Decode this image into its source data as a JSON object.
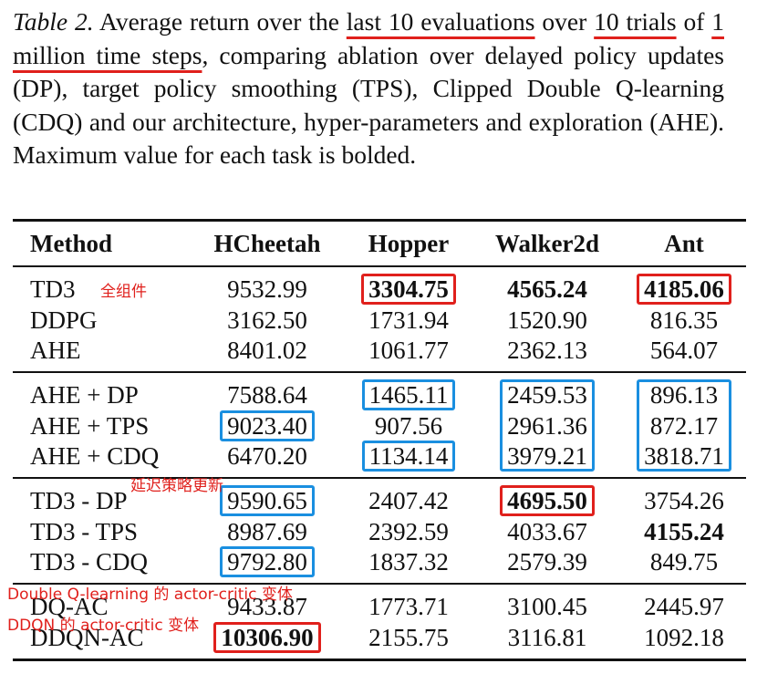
{
  "caption": {
    "label": "Table 2.",
    "segments": [
      {
        "text": " Average return over the "
      },
      {
        "text": "last 10 evaluations",
        "underline": true
      },
      {
        "text": " over "
      },
      {
        "text": "10 trials",
        "underline": true
      },
      {
        "text": " of "
      },
      {
        "text": "1 million time steps",
        "underline": true
      },
      {
        "text": ", comparing ablation over delayed policy updates (DP), target policy smoothing (TPS), Clipped Double Q-learning (CDQ) and our architecture, hyper-parameters and exploration (AHE). Maximum value for each task is bolded."
      }
    ]
  },
  "table": {
    "header": [
      "Method",
      "HCheetah",
      "Hopper",
      "Walker2d",
      "Ant"
    ],
    "groups": [
      [
        [
          {
            "text": "TD3"
          },
          {
            "text": "9532.99"
          },
          {
            "text": "3304.75",
            "bold": true,
            "box": "red"
          },
          {
            "text": "4565.24",
            "bold": true
          },
          {
            "text": "4185.06",
            "bold": true,
            "box": "red"
          }
        ],
        [
          {
            "text": "DDPG"
          },
          {
            "text": "3162.50"
          },
          {
            "text": "1731.94"
          },
          {
            "text": "1520.90"
          },
          {
            "text": "816.35"
          }
        ],
        [
          {
            "text": "AHE"
          },
          {
            "text": "8401.02"
          },
          {
            "text": "1061.77"
          },
          {
            "text": "2362.13"
          },
          {
            "text": "564.07"
          }
        ]
      ],
      [
        [
          {
            "text": "AHE + DP"
          },
          {
            "text": "7588.64"
          },
          {
            "text": "1465.11",
            "box": "blue"
          },
          {
            "text": "2459.53",
            "box": "blue"
          },
          {
            "text": "896.13",
            "box": "blue"
          }
        ],
        [
          {
            "text": "AHE + TPS"
          },
          {
            "text": "9023.40",
            "box": "blue"
          },
          {
            "text": "907.56"
          },
          {
            "text": "2961.36",
            "box": "blue"
          },
          {
            "text": "872.17",
            "box": "blue"
          }
        ],
        [
          {
            "text": "AHE + CDQ"
          },
          {
            "text": "6470.20"
          },
          {
            "text": "1134.14",
            "box": "blue"
          },
          {
            "text": "3979.21",
            "box": "blue"
          },
          {
            "text": "3818.71",
            "box": "blue"
          }
        ]
      ],
      [
        [
          {
            "text": "TD3 - DP"
          },
          {
            "text": "9590.65",
            "box": "blue"
          },
          {
            "text": "2407.42"
          },
          {
            "text": "4695.50",
            "bold": true,
            "box": "red"
          },
          {
            "text": "3754.26"
          }
        ],
        [
          {
            "text": "TD3 - TPS"
          },
          {
            "text": "8987.69"
          },
          {
            "text": "2392.59"
          },
          {
            "text": "4033.67"
          },
          {
            "text": "4155.24",
            "bold": true
          }
        ],
        [
          {
            "text": "TD3 - CDQ"
          },
          {
            "text": "9792.80",
            "box": "blue"
          },
          {
            "text": "1837.32"
          },
          {
            "text": "2579.39"
          },
          {
            "text": "849.75"
          }
        ]
      ],
      [
        [
          {
            "text": "DQ-AC"
          },
          {
            "text": "9433.87"
          },
          {
            "text": "1773.71"
          },
          {
            "text": "3100.45"
          },
          {
            "text": "2445.97"
          }
        ],
        [
          {
            "text": "DDQN-AC"
          },
          {
            "text": "10306.90",
            "bold": true,
            "box": "red"
          },
          {
            "text": "2155.75"
          },
          {
            "text": "3116.81"
          },
          {
            "text": "1092.18"
          }
        ]
      ]
    ]
  },
  "annotations": [
    {
      "text": "全组件"
    },
    {
      "text": "延迟策略更新"
    },
    {
      "text": "Double Q-learning 的 actor-critic 变体"
    },
    {
      "text": "DDQN 的 actor-critic 变体"
    }
  ]
}
